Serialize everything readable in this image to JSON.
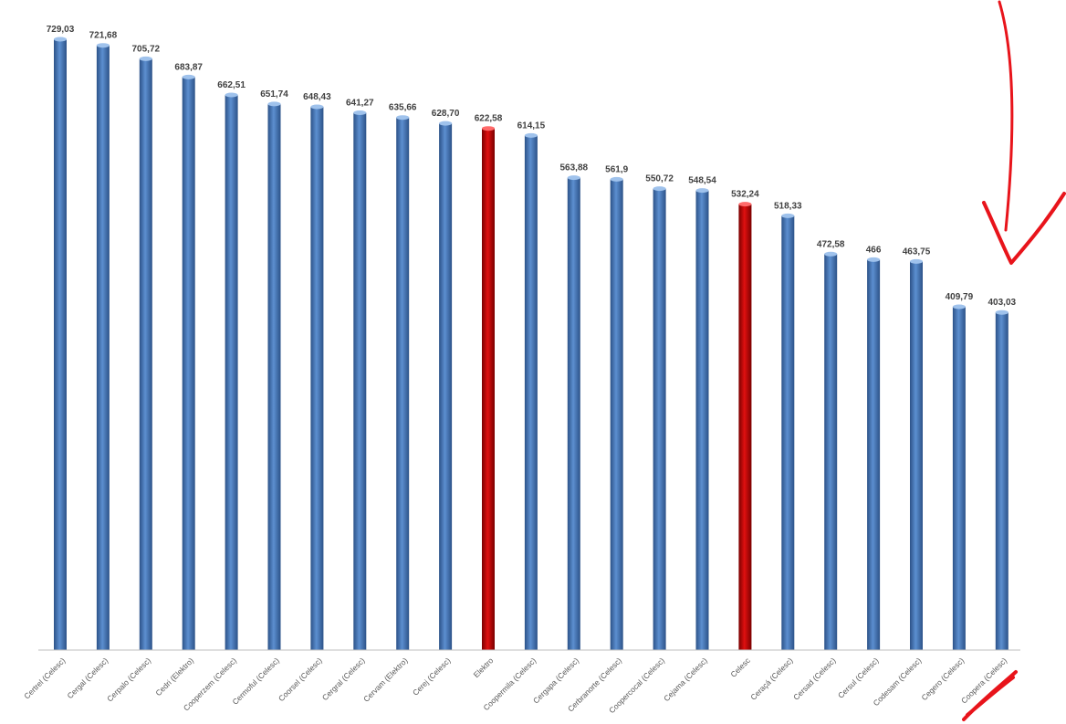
{
  "chart_data": {
    "type": "bar",
    "title": "",
    "xlabel": "",
    "ylabel": "",
    "ylim": [
      0,
      729.03
    ],
    "grid": false,
    "legend": "none",
    "categories": [
      "Certrel (Celesc)",
      "Cergal (Celesc)",
      "Cerpalo (Celesc)",
      "Cedri (Elektro)",
      "Cooperzem (Celesc)",
      "Cermoful (Celesc)",
      "Coorsel (Celesc)",
      "Cergral (Celesc)",
      "Cervam (Elektro)",
      "Cerej (Celesc)",
      "Elektro",
      "Coopermila (Celesc)",
      "Cergapa (Celesc)",
      "Cerbranorte (Celesc)",
      "Coopercocal (Celesc)",
      "Cejama (Celesc)",
      "Celesc",
      "Ceraçá (Celesc)",
      "Cersad (Celesc)",
      "Cersul (Celesc)",
      "Codesam (Celesc)",
      "Cegero (Celesc)",
      "Coopera (Celesc)"
    ],
    "values": [
      729.03,
      721.68,
      705.72,
      683.87,
      662.51,
      651.74,
      648.43,
      641.27,
      635.66,
      628.7,
      622.58,
      614.15,
      563.88,
      561.9,
      550.72,
      548.54,
      532.24,
      518.33,
      472.58,
      466,
      463.75,
      409.79,
      403.03
    ],
    "value_labels": [
      "729,03",
      "721,68",
      "705,72",
      "683,87",
      "662,51",
      "651,74",
      "648,43",
      "641,27",
      "635,66",
      "628,70",
      "622,58",
      "614,15",
      "563,88",
      "561,9",
      "550,72",
      "548,54",
      "532,24",
      "518,33",
      "472,58",
      "466",
      "463,75",
      "409,79",
      "403,03"
    ],
    "highlighted": [
      "Elektro",
      "Celesc"
    ],
    "colors": {
      "bar": "#4a7ab8",
      "bar_dark": "#2c5288",
      "highlight": "#c00000",
      "highlight_dark": "#7a0000",
      "axis": "#bfbfbf",
      "annotation": "#e8141b"
    }
  }
}
